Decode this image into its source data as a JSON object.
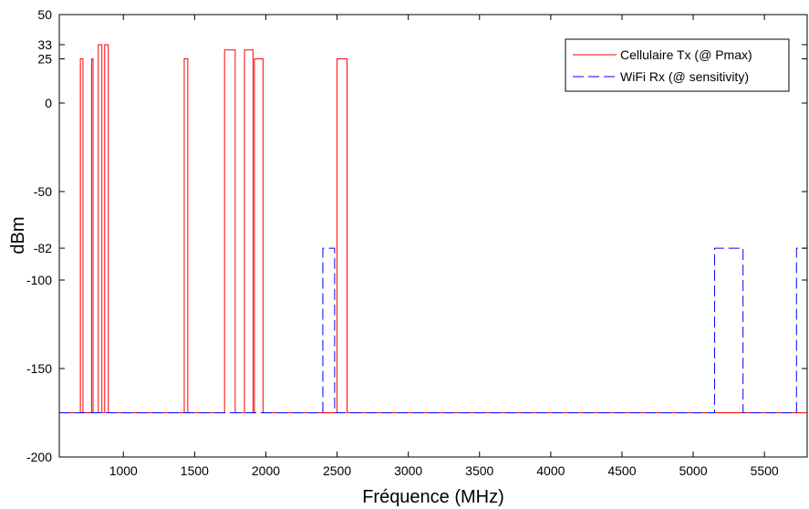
{
  "chart_data": {
    "type": "line",
    "title": "",
    "xlabel": "Fréquence (MHz)",
    "ylabel": "dBm",
    "xlim": [
      550,
      5800
    ],
    "ylim": [
      -200,
      50
    ],
    "x_ticks": [
      1000,
      1500,
      2000,
      2500,
      3000,
      3500,
      4000,
      4500,
      5000,
      5500
    ],
    "y_ticks": [
      50,
      33,
      25,
      0,
      -50,
      -82,
      -100,
      -150,
      -200
    ],
    "grid": false,
    "legend_position": "top-right",
    "series": [
      {
        "name": "Cellulaire Tx (@ Pmax)",
        "color": "#ff0000",
        "style": "solid",
        "x": [
          550,
          698,
          698,
          716,
          716,
          777,
          777,
          787,
          787,
          824,
          824,
          849,
          849,
          869,
          869,
          894,
          894,
          1427,
          1427,
          1452,
          1452,
          1710,
          1710,
          1785,
          1785,
          1850,
          1850,
          1910,
          1910,
          1920,
          1920,
          1980,
          1980,
          2500,
          2500,
          2570,
          2570,
          5800
        ],
        "y": [
          -175,
          -175,
          25,
          25,
          -175,
          -175,
          25,
          25,
          -175,
          -175,
          33,
          33,
          -175,
          -175,
          33,
          33,
          -175,
          -175,
          25,
          25,
          -175,
          -175,
          30,
          30,
          -175,
          -175,
          30,
          30,
          -175,
          -175,
          25,
          25,
          -175,
          -175,
          25,
          25,
          -175,
          -175
        ]
      },
      {
        "name": "WiFi Rx (@ sensitivity)",
        "color": "#0000ff",
        "style": "dashed",
        "x": [
          550,
          2400,
          2400,
          2483,
          2483,
          5150,
          5150,
          5350,
          5350,
          5725,
          5725,
          5800
        ],
        "y": [
          -175,
          -175,
          -82,
          -82,
          -175,
          -175,
          -82,
          -82,
          -175,
          -175,
          -82,
          -82
        ]
      }
    ]
  }
}
